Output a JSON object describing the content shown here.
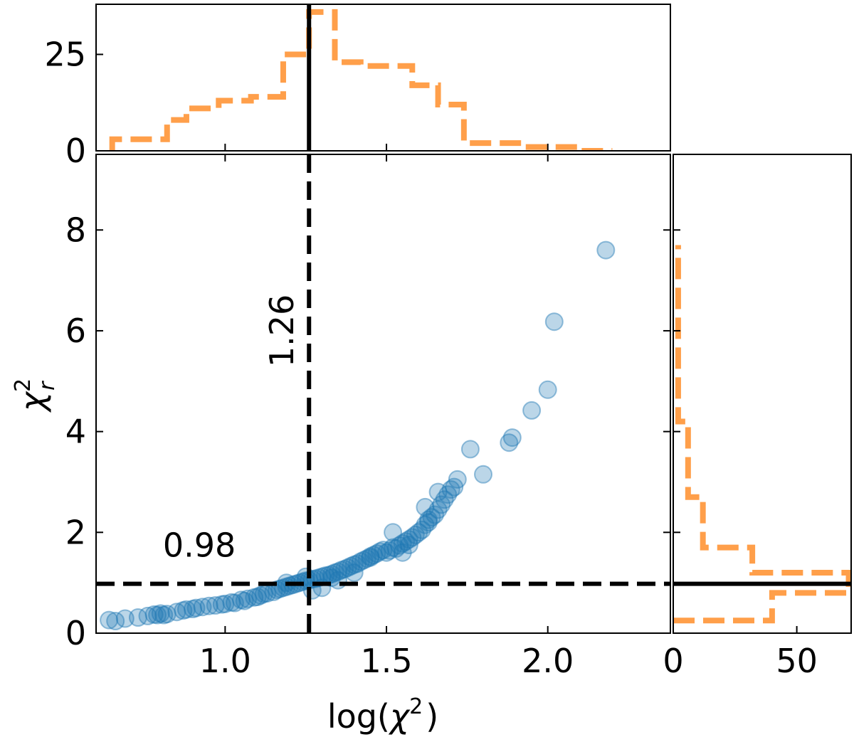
{
  "chart_data": [
    {
      "name": "main-scatter",
      "type": "scatter",
      "xlabel_base": "log(",
      "xlabel_sym": "χ",
      "xlabel_sup": "2",
      "xlabel_end": ")",
      "ylabel_sym": "χ",
      "ylabel_sup": "2",
      "ylabel_sub": "r",
      "xlim": [
        0.6,
        2.38
      ],
      "ylim": [
        0,
        9.5
      ],
      "xticks": [
        1.0,
        1.5,
        2.0
      ],
      "xtick_labels": [
        "1.0",
        "1.5",
        "2.0"
      ],
      "yticks": [
        0,
        2,
        4,
        6,
        8
      ],
      "ytick_labels": [
        "0",
        "2",
        "4",
        "6",
        "8"
      ],
      "point_color": "#1f77b4",
      "vline": {
        "x": 1.26,
        "label": "1.26"
      },
      "hline": {
        "y": 0.98,
        "label": "0.98"
      },
      "points": [
        [
          0.64,
          0.26
        ],
        [
          0.66,
          0.24
        ],
        [
          0.69,
          0.29
        ],
        [
          0.73,
          0.31
        ],
        [
          0.76,
          0.34
        ],
        [
          0.78,
          0.37
        ],
        [
          0.79,
          0.36
        ],
        [
          0.8,
          0.39
        ],
        [
          0.81,
          0.36
        ],
        [
          0.82,
          0.38
        ],
        [
          0.85,
          0.42
        ],
        [
          0.87,
          0.45
        ],
        [
          0.88,
          0.47
        ],
        [
          0.9,
          0.48
        ],
        [
          0.91,
          0.5
        ],
        [
          0.93,
          0.52
        ],
        [
          0.95,
          0.54
        ],
        [
          0.97,
          0.55
        ],
        [
          0.99,
          0.57
        ],
        [
          1.0,
          0.58
        ],
        [
          1.02,
          0.61
        ],
        [
          1.03,
          0.6
        ],
        [
          1.05,
          0.66
        ],
        [
          1.06,
          0.64
        ],
        [
          1.07,
          0.68
        ],
        [
          1.09,
          0.71
        ],
        [
          1.1,
          0.72
        ],
        [
          1.11,
          0.75
        ],
        [
          1.12,
          0.78
        ],
        [
          1.13,
          0.79
        ],
        [
          1.15,
          0.82
        ],
        [
          1.16,
          0.86
        ],
        [
          1.17,
          0.88
        ],
        [
          1.18,
          0.9
        ],
        [
          1.19,
          0.92
        ],
        [
          1.2,
          0.94
        ],
        [
          1.21,
          0.96
        ],
        [
          1.22,
          0.98
        ],
        [
          1.23,
          1.0
        ],
        [
          1.24,
          1.02
        ],
        [
          1.25,
          1.04
        ],
        [
          1.26,
          1.05
        ],
        [
          1.27,
          1.07
        ],
        [
          1.28,
          1.08
        ],
        [
          1.29,
          1.1
        ],
        [
          1.3,
          1.12
        ],
        [
          1.31,
          1.14
        ],
        [
          1.32,
          1.15
        ],
        [
          1.33,
          1.17
        ],
        [
          1.34,
          1.2
        ],
        [
          1.35,
          1.22
        ],
        [
          1.36,
          1.25
        ],
        [
          1.37,
          1.27
        ],
        [
          1.38,
          1.3
        ],
        [
          1.39,
          1.33
        ],
        [
          1.4,
          1.36
        ],
        [
          1.41,
          1.38
        ],
        [
          1.42,
          1.42
        ],
        [
          1.43,
          1.45
        ],
        [
          1.44,
          1.48
        ],
        [
          1.45,
          1.52
        ],
        [
          1.46,
          1.55
        ],
        [
          1.47,
          1.58
        ],
        [
          1.48,
          1.62
        ],
        [
          1.49,
          1.65
        ],
        [
          1.5,
          1.6
        ],
        [
          1.51,
          1.64
        ],
        [
          1.52,
          1.7
        ],
        [
          1.53,
          1.68
        ],
        [
          1.54,
          1.74
        ],
        [
          1.55,
          1.78
        ],
        [
          1.56,
          1.82
        ],
        [
          1.57,
          1.86
        ],
        [
          1.58,
          1.9
        ],
        [
          1.59,
          1.95
        ],
        [
          1.6,
          2.0
        ],
        [
          1.61,
          2.05
        ],
        [
          1.62,
          2.15
        ],
        [
          1.63,
          2.2
        ],
        [
          1.64,
          2.3
        ],
        [
          1.65,
          2.35
        ],
        [
          1.66,
          2.45
        ],
        [
          1.67,
          2.55
        ],
        [
          1.68,
          2.65
        ],
        [
          1.69,
          2.75
        ],
        [
          1.7,
          2.85
        ],
        [
          1.71,
          2.9
        ],
        [
          1.72,
          3.05
        ],
        [
          1.76,
          3.65
        ],
        [
          1.8,
          3.15
        ],
        [
          1.88,
          3.78
        ],
        [
          1.89,
          3.88
        ],
        [
          1.95,
          4.42
        ],
        [
          2.0,
          4.83
        ],
        [
          2.02,
          6.18
        ],
        [
          2.18,
          7.6
        ],
        [
          1.19,
          1.0
        ],
        [
          1.25,
          1.12
        ],
        [
          1.33,
          1.1
        ],
        [
          1.45,
          1.5
        ],
        [
          1.52,
          2.0
        ],
        [
          1.62,
          2.5
        ],
        [
          1.27,
          0.85
        ],
        [
          1.3,
          0.9
        ],
        [
          1.35,
          1.05
        ],
        [
          1.4,
          1.2
        ],
        [
          1.55,
          1.6
        ],
        [
          1.57,
          1.75
        ],
        [
          1.63,
          2.25
        ],
        [
          1.66,
          2.8
        ]
      ]
    },
    {
      "name": "top-histogram",
      "type": "histogram",
      "color": "#ff9f4a",
      "yticks": [
        0,
        25
      ],
      "ytick_labels": [
        "0",
        "25"
      ],
      "ylim": [
        0,
        38
      ],
      "vline_x": 1.26,
      "edges": [
        0.65,
        0.73,
        0.82,
        0.88,
        0.98,
        1.08,
        1.18,
        1.26,
        1.28,
        1.34,
        1.42,
        1.5,
        1.58,
        1.66,
        1.74,
        1.82,
        1.92,
        2.02,
        2.1,
        2.2
      ],
      "counts": [
        3,
        3,
        8,
        11,
        13,
        14,
        25,
        36,
        36,
        23,
        22,
        22,
        17,
        12,
        2,
        2,
        1,
        1,
        0
      ]
    },
    {
      "name": "right-histogram",
      "type": "histogram",
      "orientation": "horizontal",
      "color": "#ff9f4a",
      "xticks": [
        0,
        50
      ],
      "xtick_labels": [
        "0",
        "50"
      ],
      "xlim": [
        0,
        72
      ],
      "hline_y": 0.98,
      "edges": [
        0.25,
        0.8,
        1.2,
        1.7,
        2.7,
        4.2,
        7.7
      ],
      "counts": [
        40,
        71,
        32,
        12,
        6,
        2
      ]
    }
  ]
}
